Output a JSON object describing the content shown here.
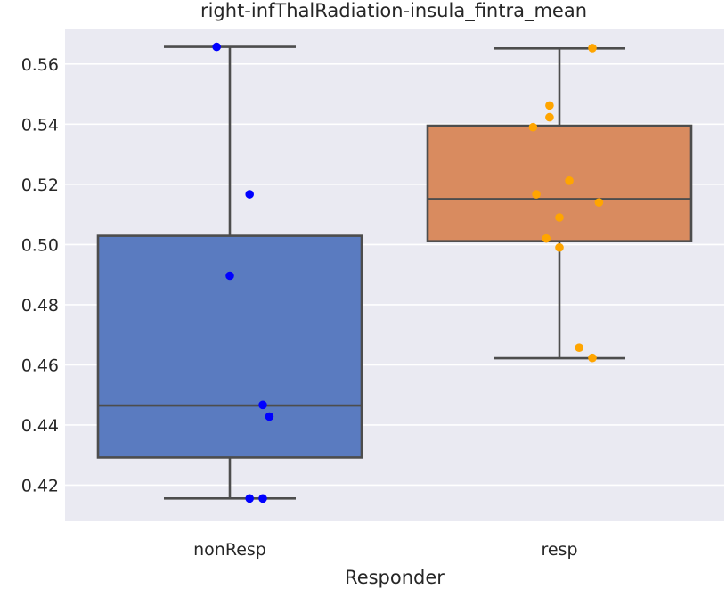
{
  "chart_data": {
    "type": "box",
    "title": "right-infThalRadiation-insula_fintra_mean",
    "xlabel": "Responder",
    "ylabel": "",
    "categories": [
      "nonResp",
      "resp"
    ],
    "ylim": [
      0.408,
      0.5715
    ],
    "yticks": [
      0.42,
      0.44,
      0.46,
      0.48,
      0.5,
      0.52,
      0.54,
      0.56
    ],
    "ytick_labels": [
      "0.42",
      "0.44",
      "0.46",
      "0.48",
      "0.50",
      "0.52",
      "0.54",
      "0.56"
    ],
    "grid": true,
    "series": [
      {
        "category": "nonResp",
        "box_color": "#5a7bc0",
        "point_color": "#0000ff",
        "whisker_low": 0.4156,
        "q1": 0.4292,
        "median": 0.4465,
        "q3": 0.5029,
        "whisker_high": 0.5657,
        "points": [
          {
            "offset": -0.04,
            "y": 0.5657
          },
          {
            "offset": 0.06,
            "y": 0.5167
          },
          {
            "offset": 0.0,
            "y": 0.4896
          },
          {
            "offset": 0.1,
            "y": 0.4467
          },
          {
            "offset": 0.12,
            "y": 0.4428
          },
          {
            "offset": 0.06,
            "y": 0.4156
          },
          {
            "offset": 0.1,
            "y": 0.4156
          }
        ]
      },
      {
        "category": "resp",
        "box_color": "#d98b5f",
        "point_color": "#ffa500",
        "whisker_low": 0.4622,
        "q1": 0.5011,
        "median": 0.5151,
        "q3": 0.5395,
        "whisker_high": 0.5652,
        "points": [
          {
            "offset": 0.1,
            "y": 0.5653
          },
          {
            "offset": -0.03,
            "y": 0.5462
          },
          {
            "offset": -0.03,
            "y": 0.5423
          },
          {
            "offset": -0.08,
            "y": 0.539
          },
          {
            "offset": 0.03,
            "y": 0.5212
          },
          {
            "offset": -0.07,
            "y": 0.5167
          },
          {
            "offset": 0.12,
            "y": 0.514
          },
          {
            "offset": 0.0,
            "y": 0.509
          },
          {
            "offset": -0.04,
            "y": 0.502
          },
          {
            "offset": 0.0,
            "y": 0.499
          },
          {
            "offset": 0.06,
            "y": 0.4657
          },
          {
            "offset": 0.1,
            "y": 0.4623
          }
        ]
      }
    ]
  }
}
